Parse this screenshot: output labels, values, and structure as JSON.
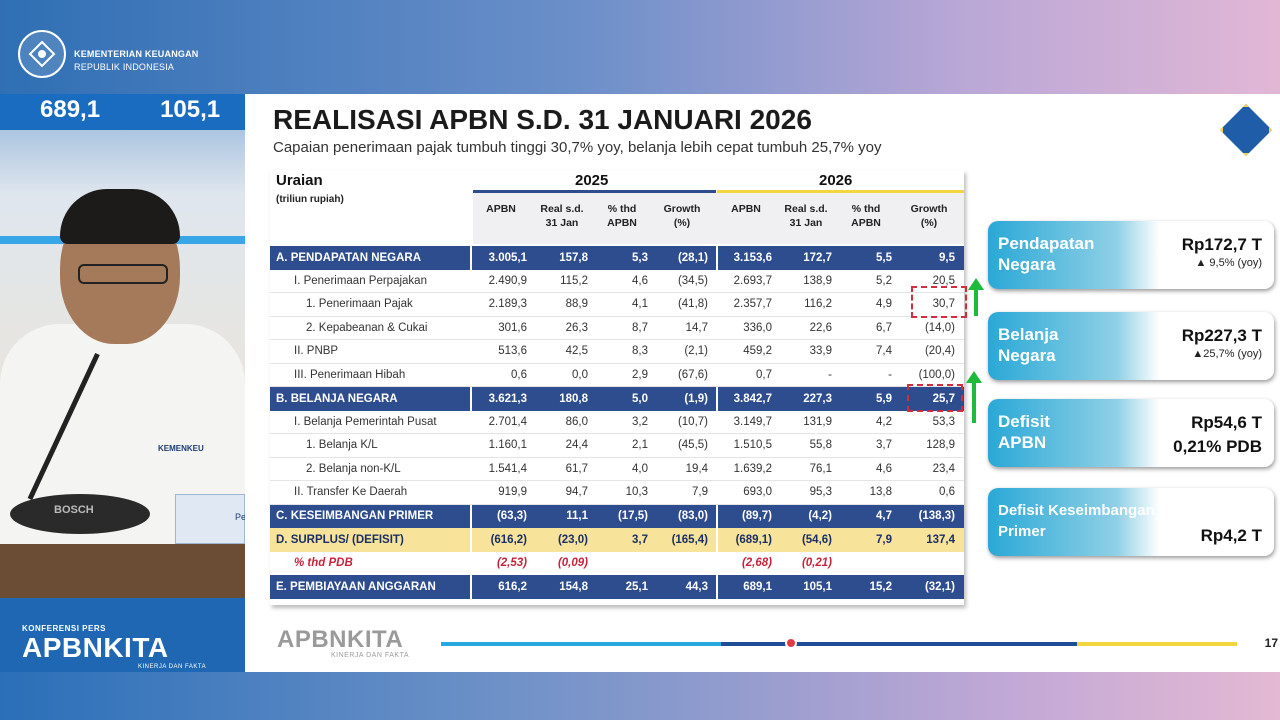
{
  "header": {
    "org_name": "KEMENTERIAN KEUANGAN",
    "org_sub": "REPUBLIK INDONESIA"
  },
  "video": {
    "ticker": [
      "689,1",
      "105,1"
    ],
    "mic_brand": "BOSCH",
    "badge": "KEMENKEU",
    "nameplate": "Pe"
  },
  "brand": {
    "small": "KONFERENSI PERS",
    "big": "APBNKITA",
    "tag": "KINERJA DAN FAKTA"
  },
  "slide": {
    "title": "REALISASI APBN S.D. 31 JANUARI 2026",
    "subtitle": "Capaian penerimaan pajak tumbuh tinggi 30,7% yoy, belanja lebih cepat tumbuh 25,7% yoy",
    "page": "17",
    "footer_brand": "APBNKITA",
    "footer_tag": "KINERJA DAN FAKTA",
    "progress_fraction": 0.44
  },
  "table": {
    "uraian": "Uraian",
    "unit": "(triliun rupiah)",
    "year_a": "2025",
    "year_b": "2026",
    "columns": [
      "APBN",
      "Real s.d.\n31 Jan",
      "% thd\nAPBN",
      "Growth\n(%)",
      "APBN",
      "Real s.d.\n31 Jan",
      "% thd\nAPBN",
      "Growth\n(%)"
    ],
    "rows": [
      {
        "label": "A. PENDAPATAN NEGARA",
        "style": "hdr",
        "v": [
          "3.005,1",
          "157,8",
          "5,3",
          "(28,1)",
          "3.153,6",
          "172,7",
          "5,5",
          "9,5"
        ]
      },
      {
        "label": "I. Penerimaan Perpajakan",
        "style": "sub",
        "indent": 1,
        "v": [
          "2.490,9",
          "115,2",
          "4,6",
          "(34,5)",
          "2.693,7",
          "138,9",
          "5,2",
          "20,5"
        ]
      },
      {
        "label": "1. Penerimaan Pajak",
        "style": "sub",
        "indent": 2,
        "v": [
          "2.189,3",
          "88,9",
          "4,1",
          "(41,8)",
          "2.357,7",
          "116,2",
          "4,9",
          "30,7"
        ]
      },
      {
        "label": "2. Kepabeanan & Cukai",
        "style": "sub",
        "indent": 2,
        "v": [
          "301,6",
          "26,3",
          "8,7",
          "14,7",
          "336,0",
          "22,6",
          "6,7",
          "(14,0)"
        ]
      },
      {
        "label": "II. PNBP",
        "style": "sub",
        "indent": 1,
        "v": [
          "513,6",
          "42,5",
          "8,3",
          "(2,1)",
          "459,2",
          "33,9",
          "7,4",
          "(20,4)"
        ]
      },
      {
        "label": "III. Penerimaan Hibah",
        "style": "sub",
        "indent": 1,
        "v": [
          "0,6",
          "0,0",
          "2,9",
          "(67,6)",
          "0,7",
          "-",
          "-",
          "(100,0)"
        ]
      },
      {
        "label": "B. BELANJA NEGARA",
        "style": "hdr",
        "v": [
          "3.621,3",
          "180,8",
          "5,0",
          "(1,9)",
          "3.842,7",
          "227,3",
          "5,9",
          "25,7"
        ]
      },
      {
        "label": "I. Belanja Pemerintah Pusat",
        "style": "sub",
        "indent": 1,
        "v": [
          "2.701,4",
          "86,0",
          "3,2",
          "(10,7)",
          "3.149,7",
          "131,9",
          "4,2",
          "53,3"
        ]
      },
      {
        "label": "1. Belanja K/L",
        "style": "sub",
        "indent": 2,
        "v": [
          "1.160,1",
          "24,4",
          "2,1",
          "(45,5)",
          "1.510,5",
          "55,8",
          "3,7",
          "128,9"
        ]
      },
      {
        "label": "2. Belanja non-K/L",
        "style": "sub",
        "indent": 2,
        "v": [
          "1.541,4",
          "61,7",
          "4,0",
          "19,4",
          "1.639,2",
          "76,1",
          "4,6",
          "23,4"
        ]
      },
      {
        "label": "II. Transfer Ke Daerah",
        "style": "sub",
        "indent": 1,
        "v": [
          "919,9",
          "94,7",
          "10,3",
          "7,9",
          "693,0",
          "95,3",
          "13,8",
          "0,6"
        ]
      },
      {
        "label": "C. KESEIMBANGAN PRIMER",
        "style": "hdr",
        "v": [
          "(63,3)",
          "11,1",
          "(17,5)",
          "(83,0)",
          "(89,7)",
          "(4,2)",
          "4,7",
          "(138,3)"
        ]
      },
      {
        "label": "D. SURPLUS/ (DEFISIT)",
        "style": "surplus",
        "v": [
          "(616,2)",
          "(23,0)",
          "3,7",
          "(165,4)",
          "(689,1)",
          "(54,6)",
          "7,9",
          "137,4"
        ]
      },
      {
        "label": "% thd PDB",
        "style": "pdb",
        "indent": 1,
        "v": [
          "(2,53)",
          "(0,09)",
          "",
          "",
          "(2,68)",
          "(0,21)",
          "",
          ""
        ]
      },
      {
        "label": "E. PEMBIAYAAN ANGGARAN",
        "style": "hdr",
        "v": [
          "616,2",
          "154,8",
          "25,1",
          "44,3",
          "689,1",
          "105,1",
          "15,2",
          "(32,1)"
        ]
      }
    ]
  },
  "cards": [
    {
      "label": "Pendapatan\nNegara",
      "value": "Rp172,7 T",
      "note": "▲ 9,5% (yoy)"
    },
    {
      "label": "Belanja\nNegara",
      "value": "Rp227,3 T",
      "note": "▲25,7% (yoy)"
    },
    {
      "label": "Defisit\nAPBN",
      "value": "Rp54,6 T",
      "note": "0,21% PDB"
    },
    {
      "label": "Defisit Keseimbangan\nPrimer",
      "value": "Rp4,2 T",
      "note": ""
    }
  ]
}
